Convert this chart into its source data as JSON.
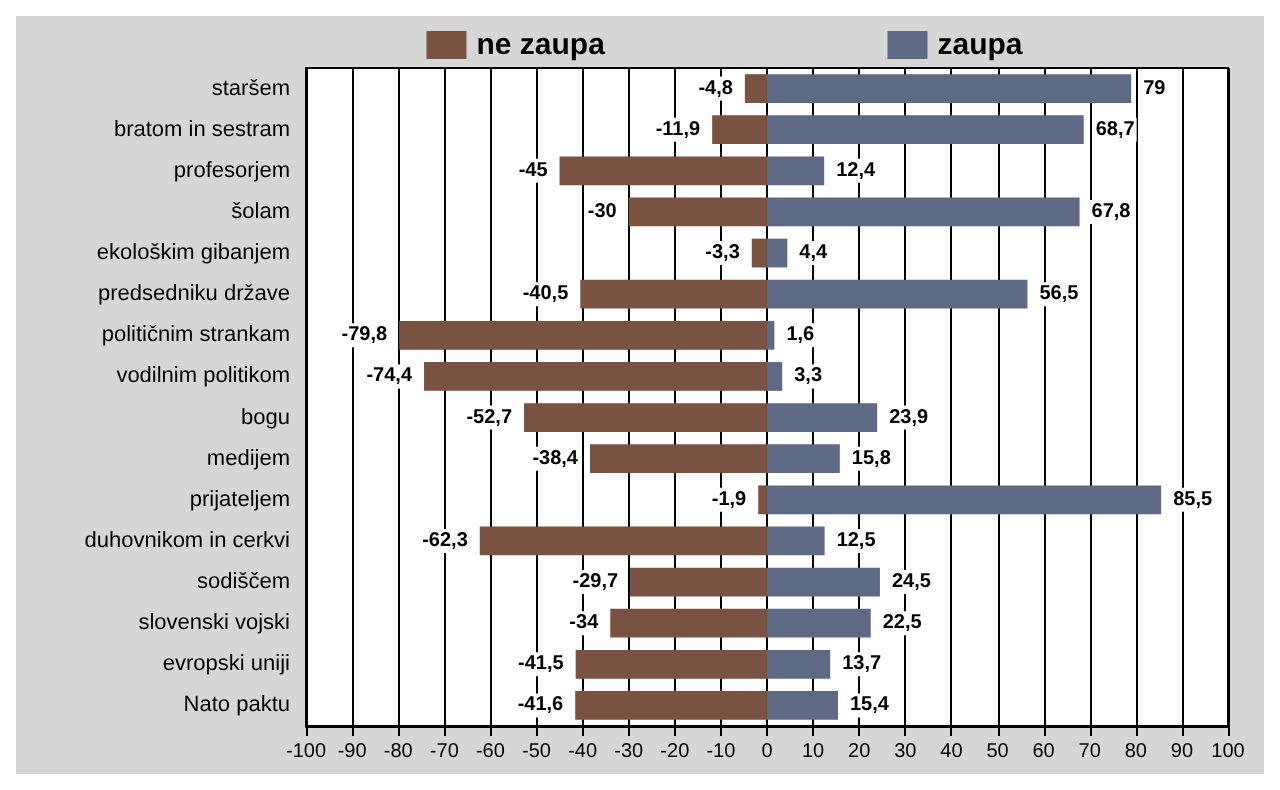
{
  "chart_data": {
    "type": "bar",
    "orientation": "horizontal",
    "stacked": true,
    "legend": "top",
    "grid": "x",
    "categories": [
      "staršem",
      "bratom in sestram",
      "profesorjem",
      "šolam",
      "ekološkim gibanjem",
      "predsedniku države",
      "političnim strankam",
      "vodilnim politikom",
      "bogu",
      "medijem",
      "prijateljem",
      "duhovnikom in cerkvi",
      "sodiščem",
      "slovenski vojski",
      "evropski uniji",
      "Nato paktu"
    ],
    "series": [
      {
        "name": "ne zaupa",
        "color": "#7a5242",
        "values": [
          -4.8,
          -11.9,
          -45,
          -30,
          -3.3,
          -40.5,
          -79.8,
          -74.4,
          -52.7,
          -38.4,
          -1.9,
          -62.3,
          -29.7,
          -34,
          -41.5,
          -41.6
        ],
        "value_labels": [
          "-4,8",
          "-11,9",
          "-45",
          "-30",
          "-3,3",
          "-40,5",
          "-79,8",
          "-74,4",
          "-52,7",
          "-38,4",
          "-1,9",
          "-62,3",
          "-29,7",
          "-34",
          "-41,5",
          "-41,6"
        ]
      },
      {
        "name": "zaupa",
        "color": "#5e6a84",
        "values": [
          79,
          68.7,
          12.4,
          67.8,
          4.4,
          56.5,
          1.6,
          3.3,
          23.9,
          15.8,
          85.5,
          12.5,
          24.5,
          22.5,
          13.7,
          15.4
        ],
        "value_labels": [
          "79",
          "68,7",
          "12,4",
          "67,8",
          "4,4",
          "56,5",
          "1,6",
          "3,3",
          "23,9",
          "15,8",
          "85,5",
          "12,5",
          "24,5",
          "22,5",
          "13,7",
          "15,4"
        ]
      }
    ],
    "xlim": [
      -100,
      100
    ],
    "xticks": [
      -100,
      -90,
      -80,
      -70,
      -60,
      -50,
      -40,
      -30,
      -20,
      -10,
      0,
      10,
      20,
      30,
      40,
      50,
      60,
      70,
      80,
      90,
      100
    ]
  }
}
